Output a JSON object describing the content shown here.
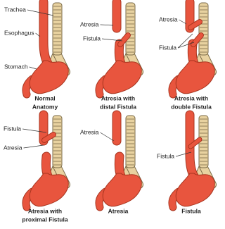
{
  "panels": [
    {
      "labels": [
        "Trachea",
        "Esophagus",
        "Stomach"
      ],
      "caption": [
        "Normal",
        "Anatomy"
      ]
    },
    {
      "labels": [
        "Atresia",
        "Fistula"
      ],
      "caption": [
        "Atresia with",
        "distal Fistula"
      ]
    },
    {
      "labels": [
        "Atresia",
        "Fistula"
      ],
      "caption": [
        "Atresia with",
        "double Fistula"
      ]
    },
    {
      "labels": [
        "Fistula",
        "Atresia"
      ],
      "caption": [
        "Atresia with",
        "proximal Fistula"
      ]
    },
    {
      "labels": [
        "Atresia"
      ],
      "caption": [
        "Atresia"
      ]
    },
    {
      "labels": [
        "Fistula"
      ],
      "caption": [
        "Fistula"
      ]
    }
  ]
}
